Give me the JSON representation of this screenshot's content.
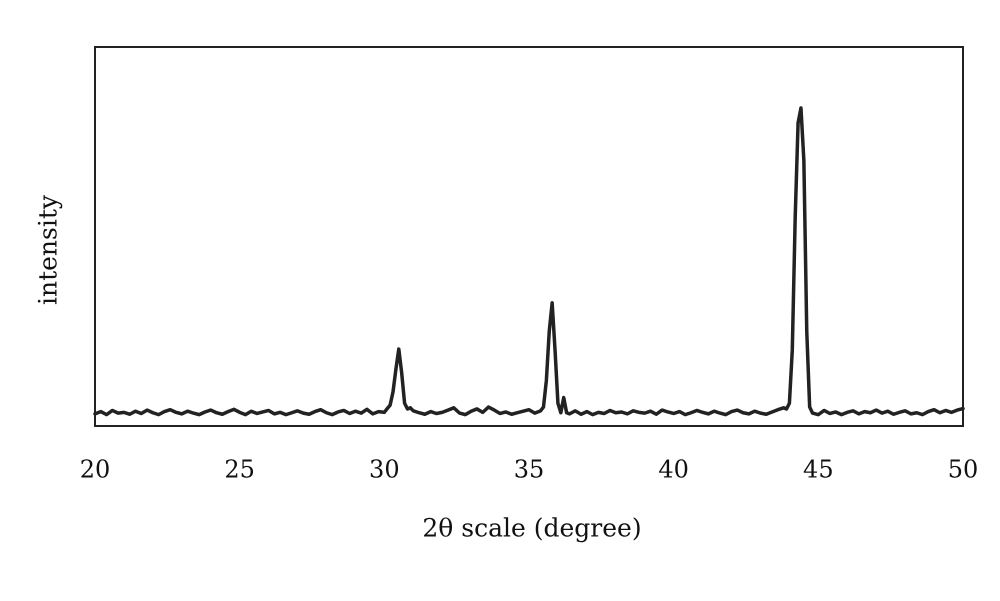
{
  "chart_data": {
    "type": "line",
    "xlabel": "2θ scale (degree)",
    "ylabel": "intensity",
    "xlim": [
      20,
      50
    ],
    "xticks": [
      20,
      25,
      30,
      35,
      40,
      45,
      50
    ],
    "ylim": [
      0,
      100
    ],
    "color": "#222222",
    "x": [
      20.0,
      20.2,
      20.4,
      20.6,
      20.8,
      21.0,
      21.2,
      21.4,
      21.6,
      21.8,
      22.0,
      22.2,
      22.4,
      22.6,
      22.8,
      23.0,
      23.2,
      23.4,
      23.6,
      23.8,
      24.0,
      24.2,
      24.4,
      24.6,
      24.8,
      25.0,
      25.2,
      25.4,
      25.6,
      25.8,
      26.0,
      26.2,
      26.4,
      26.6,
      26.8,
      27.0,
      27.2,
      27.4,
      27.6,
      27.8,
      28.0,
      28.2,
      28.4,
      28.6,
      28.8,
      29.0,
      29.2,
      29.4,
      29.6,
      29.8,
      30.0,
      30.1,
      30.2,
      30.3,
      30.4,
      30.5,
      30.6,
      30.7,
      30.8,
      30.9,
      31.0,
      31.2,
      31.4,
      31.6,
      31.8,
      32.0,
      32.2,
      32.4,
      32.6,
      32.8,
      33.0,
      33.2,
      33.4,
      33.6,
      33.8,
      34.0,
      34.2,
      34.4,
      34.6,
      34.8,
      35.0,
      35.2,
      35.4,
      35.5,
      35.6,
      35.7,
      35.8,
      35.9,
      36.0,
      36.1,
      36.2,
      36.3,
      36.4,
      36.6,
      36.8,
      37.0,
      37.2,
      37.4,
      37.6,
      37.8,
      38.0,
      38.2,
      38.4,
      38.6,
      38.8,
      39.0,
      39.2,
      39.4,
      39.6,
      39.8,
      40.0,
      40.2,
      40.4,
      40.6,
      40.8,
      41.0,
      41.2,
      41.4,
      41.6,
      41.8,
      42.0,
      42.2,
      42.4,
      42.6,
      42.8,
      43.0,
      43.2,
      43.4,
      43.6,
      43.8,
      43.9,
      44.0,
      44.1,
      44.2,
      44.3,
      44.4,
      44.5,
      44.6,
      44.7,
      44.8,
      45.0,
      45.2,
      45.4,
      45.6,
      45.8,
      46.0,
      46.2,
      46.4,
      46.6,
      46.8,
      47.0,
      47.2,
      47.4,
      47.6,
      47.8,
      48.0,
      48.2,
      48.4,
      48.6,
      48.8,
      49.0,
      49.2,
      49.4,
      49.6,
      49.8,
      50.0
    ],
    "values": [
      3.2,
      3.8,
      3.0,
      4.1,
      3.4,
      3.6,
      3.1,
      3.9,
      3.3,
      4.2,
      3.5,
      3.0,
      3.8,
      4.3,
      3.6,
      3.2,
      3.9,
      3.4,
      3.0,
      3.7,
      4.2,
      3.5,
      3.1,
      3.8,
      4.4,
      3.6,
      3.0,
      3.9,
      3.3,
      3.7,
      4.1,
      3.2,
      3.6,
      3.0,
      3.5,
      4.0,
      3.4,
      3.1,
      3.8,
      4.3,
      3.5,
      3.0,
      3.7,
      4.1,
      3.3,
      3.9,
      3.4,
      4.4,
      3.2,
      3.8,
      3.6,
      4.6,
      5.5,
      9.0,
      15.0,
      20.3,
      14.0,
      6.0,
      4.5,
      4.8,
      4.0,
      3.5,
      3.1,
      3.8,
      3.3,
      3.6,
      4.2,
      4.8,
      3.4,
      3.0,
      3.9,
      4.5,
      3.6,
      5.0,
      4.2,
      3.3,
      3.7,
      3.1,
      3.5,
      3.9,
      4.3,
      3.4,
      4.0,
      5.0,
      12.0,
      25.0,
      32.5,
      20.0,
      6.0,
      3.5,
      7.5,
      3.5,
      3.2,
      4.0,
      3.1,
      3.8,
      3.0,
      3.6,
      3.3,
      4.1,
      3.5,
      3.7,
      3.2,
      4.0,
      3.6,
      3.4,
      3.9,
      3.1,
      4.2,
      3.7,
      3.3,
      3.8,
      3.0,
      3.5,
      4.1,
      3.6,
      3.2,
      3.9,
      3.4,
      3.0,
      3.8,
      4.2,
      3.5,
      3.2,
      3.9,
      3.4,
      3.1,
      3.7,
      4.3,
      4.8,
      4.5,
      6.0,
      20.0,
      55.0,
      80.0,
      83.9,
      70.0,
      25.0,
      5.0,
      3.4,
      3.0,
      4.1,
      3.3,
      3.7,
      3.0,
      3.6,
      4.0,
      3.2,
      3.8,
      3.5,
      4.2,
      3.4,
      3.9,
      3.1,
      3.6,
      4.0,
      3.2,
      3.5,
      3.0,
      3.8,
      4.3,
      3.5,
      4.1,
      3.6,
      4.2,
      4.6
    ]
  }
}
